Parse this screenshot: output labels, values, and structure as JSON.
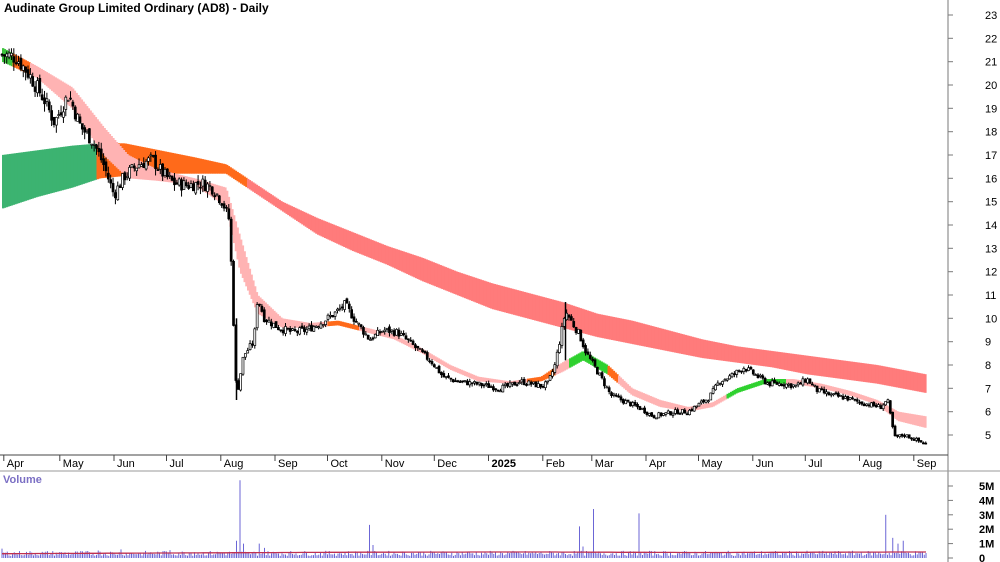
{
  "title": "Audinate Group Limited Ordinary (AD8) - Daily",
  "chart_data": {
    "type": "candlestick",
    "price_axis": {
      "ylim": [
        4,
        23.5
      ],
      "ticks": [
        5,
        6,
        7,
        8,
        9,
        10,
        11,
        12,
        13,
        14,
        15,
        16,
        17,
        18,
        19,
        20,
        21,
        22,
        23
      ]
    },
    "time_axis": {
      "labels": [
        "Apr",
        "May",
        "Jun",
        "Jul",
        "Aug",
        "Sep",
        "Oct",
        "Nov",
        "Dec",
        "2025",
        "Feb",
        "Mar",
        "Apr",
        "May",
        "Jun",
        "Jul",
        "Aug",
        "Sep"
      ],
      "label_day": [
        7,
        39,
        70,
        100,
        131,
        162,
        192,
        223,
        253,
        284,
        315,
        343,
        374,
        404,
        435,
        465,
        496,
        527
      ],
      "bold_labels": [
        "2025"
      ]
    },
    "close_path": [
      [
        0,
        21.3
      ],
      [
        8,
        21.2
      ],
      [
        16,
        20.4
      ],
      [
        24,
        19.4
      ],
      [
        30,
        18.4
      ],
      [
        38,
        19.6
      ],
      [
        45,
        18.2
      ],
      [
        52,
        17.6
      ],
      [
        58,
        16.6
      ],
      [
        64,
        15.3
      ],
      [
        70,
        16.1
      ],
      [
        78,
        16.6
      ],
      [
        86,
        16.8
      ],
      [
        92,
        16.2
      ],
      [
        98,
        15.8
      ],
      [
        106,
        15.7
      ],
      [
        114,
        15.8
      ],
      [
        120,
        15.6
      ],
      [
        126,
        15.0
      ],
      [
        130,
        14.2
      ],
      [
        134,
        6.6
      ],
      [
        138,
        8.4
      ],
      [
        144,
        9.0
      ],
      [
        146,
        10.9
      ],
      [
        150,
        10.0
      ],
      [
        158,
        9.6
      ],
      [
        166,
        9.4
      ],
      [
        174,
        9.5
      ],
      [
        182,
        9.8
      ],
      [
        190,
        10.2
      ],
      [
        196,
        10.6
      ],
      [
        202,
        9.9
      ],
      [
        210,
        9.1
      ],
      [
        218,
        9.5
      ],
      [
        226,
        9.4
      ],
      [
        234,
        8.9
      ],
      [
        240,
        8.5
      ],
      [
        246,
        8.1
      ],
      [
        252,
        7.5
      ],
      [
        260,
        7.3
      ],
      [
        270,
        7.2
      ],
      [
        278,
        7.1
      ],
      [
        284,
        7.0
      ],
      [
        290,
        7.1
      ],
      [
        296,
        7.3
      ],
      [
        302,
        7.2
      ],
      [
        308,
        7.1
      ],
      [
        312,
        7.2
      ],
      [
        316,
        8.0
      ],
      [
        322,
        10.3
      ],
      [
        330,
        9.3
      ],
      [
        334,
        8.5
      ],
      [
        342,
        7.5
      ],
      [
        348,
        6.7
      ],
      [
        354,
        6.5
      ],
      [
        360,
        6.3
      ],
      [
        366,
        6.1
      ],
      [
        372,
        5.8
      ],
      [
        378,
        5.9
      ],
      [
        386,
        6.0
      ],
      [
        392,
        6.0
      ],
      [
        398,
        6.3
      ],
      [
        404,
        6.6
      ],
      [
        410,
        7.3
      ],
      [
        416,
        7.5
      ],
      [
        424,
        7.9
      ],
      [
        430,
        7.6
      ],
      [
        438,
        7.2
      ],
      [
        446,
        7.2
      ],
      [
        454,
        7.1
      ],
      [
        460,
        7.4
      ],
      [
        466,
        6.9
      ],
      [
        474,
        6.7
      ],
      [
        482,
        6.6
      ],
      [
        490,
        6.4
      ],
      [
        496,
        6.3
      ],
      [
        502,
        6.2
      ],
      [
        506,
        6.5
      ],
      [
        510,
        4.9
      ],
      [
        516,
        5.0
      ],
      [
        522,
        4.8
      ],
      [
        528,
        4.6
      ]
    ],
    "bands": [
      {
        "name": "short_mma",
        "ranges": [
          [
            0,
            21.6,
            21.0
          ],
          [
            20,
            20.8,
            20.3
          ],
          [
            40,
            19.9,
            19.0
          ],
          [
            58,
            18.2,
            17.0
          ],
          [
            72,
            17.0,
            16.0
          ],
          [
            88,
            16.4,
            15.9
          ],
          [
            110,
            16.0,
            15.7
          ],
          [
            128,
            15.6,
            14.8
          ],
          [
            136,
            13.5,
            12.0
          ],
          [
            146,
            11.0,
            10.2
          ],
          [
            160,
            10.0,
            9.6
          ],
          [
            176,
            9.8,
            9.6
          ],
          [
            192,
            9.9,
            9.7
          ],
          [
            208,
            9.6,
            9.4
          ],
          [
            224,
            9.3,
            9.1
          ],
          [
            240,
            8.7,
            8.5
          ],
          [
            256,
            8.0,
            7.8
          ],
          [
            272,
            7.5,
            7.3
          ],
          [
            290,
            7.3,
            7.2
          ],
          [
            308,
            7.5,
            7.3
          ],
          [
            320,
            8.1,
            7.7
          ],
          [
            332,
            8.6,
            8.2
          ],
          [
            346,
            8.0,
            7.6
          ],
          [
            360,
            7.0,
            6.7
          ],
          [
            376,
            6.5,
            6.2
          ],
          [
            392,
            6.2,
            6.0
          ],
          [
            406,
            6.4,
            6.2
          ],
          [
            420,
            7.0,
            6.8
          ],
          [
            436,
            7.4,
            7.2
          ],
          [
            452,
            7.4,
            7.2
          ],
          [
            468,
            7.2,
            7.0
          ],
          [
            484,
            6.9,
            6.7
          ],
          [
            500,
            6.5,
            6.3
          ],
          [
            512,
            6.0,
            5.6
          ],
          [
            528,
            5.8,
            5.3
          ]
        ]
      },
      {
        "name": "long_mma",
        "ranges": [
          [
            0,
            17.0,
            14.7
          ],
          [
            20,
            17.2,
            15.2
          ],
          [
            40,
            17.4,
            15.6
          ],
          [
            56,
            17.5,
            16.0
          ],
          [
            70,
            17.5,
            16.1
          ],
          [
            90,
            17.2,
            16.2
          ],
          [
            110,
            16.9,
            16.2
          ],
          [
            128,
            16.6,
            16.2
          ],
          [
            140,
            16.0,
            15.6
          ],
          [
            160,
            15.0,
            14.6
          ],
          [
            180,
            14.3,
            13.6
          ],
          [
            200,
            13.7,
            12.9
          ],
          [
            220,
            13.1,
            12.3
          ],
          [
            240,
            12.6,
            11.6
          ],
          [
            260,
            12.0,
            11.0
          ],
          [
            280,
            11.5,
            10.4
          ],
          [
            300,
            11.1,
            10.0
          ],
          [
            320,
            10.7,
            9.6
          ],
          [
            340,
            10.2,
            9.2
          ],
          [
            360,
            9.9,
            8.9
          ],
          [
            380,
            9.5,
            8.6
          ],
          [
            400,
            9.1,
            8.3
          ],
          [
            420,
            8.8,
            8.1
          ],
          [
            440,
            8.6,
            7.9
          ],
          [
            460,
            8.4,
            7.6
          ],
          [
            480,
            8.2,
            7.4
          ],
          [
            500,
            8.0,
            7.2
          ],
          [
            528,
            7.6,
            6.8
          ]
        ]
      }
    ],
    "volume": {
      "ylim": [
        0,
        5800000
      ],
      "ticks": [
        0,
        1000000,
        2000000,
        3000000,
        4000000,
        5000000
      ],
      "tick_labels": [
        "0",
        "1M",
        "2M",
        "3M",
        "4M",
        "5M"
      ],
      "label": "Volume"
    },
    "volume_spikes": [
      [
        0,
        650000
      ],
      [
        55,
        520000
      ],
      [
        68,
        600000
      ],
      [
        92,
        480000
      ],
      [
        96,
        550000
      ],
      [
        110,
        400000
      ],
      [
        134,
        1200000
      ],
      [
        136,
        5400000
      ],
      [
        138,
        1000000
      ],
      [
        147,
        1000000
      ],
      [
        150,
        700000
      ],
      [
        210,
        2300000
      ],
      [
        212,
        900000
      ],
      [
        330,
        2200000
      ],
      [
        332,
        800000
      ],
      [
        338,
        3400000
      ],
      [
        364,
        3100000
      ],
      [
        505,
        3000000
      ],
      [
        509,
        1400000
      ],
      [
        512,
        1000000
      ],
      [
        515,
        1200000
      ]
    ],
    "volume_avg": [
      [
        0,
        300000
      ],
      [
        100,
        350000
      ],
      [
        200,
        400000
      ],
      [
        300,
        420000
      ],
      [
        400,
        380000
      ],
      [
        528,
        420000
      ]
    ]
  }
}
